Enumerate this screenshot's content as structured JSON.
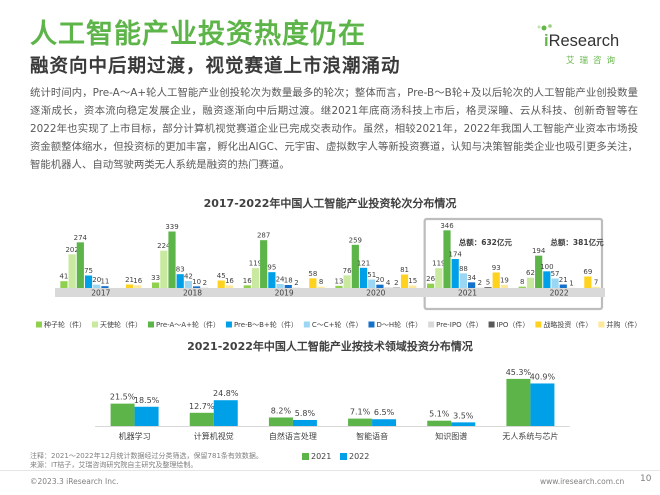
{
  "page": {
    "title": "人工智能产业投资热度仍在",
    "subtitle": "融资向中后期过渡，视觉赛道上市浪潮涌动",
    "paragraph": "统计时间内，Pre-A～A+轮人工智能产业创投轮次为数量最多的轮次；整体而言，Pre-B～B轮+及以后轮次的人工智能产业创投数量逐渐成长，资本流向稳定发展企业，融资逐渐向中后期过渡。继2021年底商汤科技上市后，格灵深瞳、云从科技、创新奇智等在2022年也实现了上市目标，部分计算机视觉赛道企业已完成交表动作。虽然，相较2021年，2022年我国人工智能产业资本市场投资金额整体缩水，但投资标的更加丰富，孵化出AIGC、元宇宙、虚拟数字人等新投资赛道，认知与决策智能类企业也吸引更多关注，智能机器人、自动驾驶两类无人系统是融资的热门赛道。",
    "footnote_1": "注释：2021～2022年12月统计数据经过分类筛选，保留781条有效数据。",
    "footnote_2": "来源：IT桔子，艾瑞咨询研究院自主研究及整理绘制。",
    "copyright": "©2023.3 iResearch Inc.",
    "site": "www.iresearch.com.cn",
    "page_number": "10",
    "logo_word_i": "i",
    "logo_word_rest": "Research",
    "logo_sub": "艾瑞咨询"
  },
  "colors": {
    "green_title": "#5db54a",
    "highlight_box": "#bdbdbd"
  },
  "chart_data": [
    {
      "type": "bar",
      "title": "2017-2022年中国人工智能产业投资轮次分布情况",
      "categories": [
        "2017",
        "2018",
        "2019",
        "2020",
        "2021",
        "2022"
      ],
      "series": [
        {
          "name": "种子轮（件）",
          "color": "#8fd14f",
          "values": [
            41,
            33,
            16,
            13,
            26,
            8
          ]
        },
        {
          "name": "天使轮（件）",
          "color": "#c9e9a1",
          "values": [
            202,
            224,
            119,
            76,
            119,
            62
          ]
        },
        {
          "name": "Pre-A～A+轮（件）",
          "color": "#5db54a",
          "values": [
            274,
            339,
            287,
            259,
            346,
            194
          ]
        },
        {
          "name": "Pre-B～B+轮（件）",
          "color": "#00a0e9",
          "values": [
            75,
            83,
            95,
            121,
            174,
            100
          ]
        },
        {
          "name": "C～C+轮（件）",
          "color": "#9bd7f3",
          "values": [
            20,
            42,
            24,
            51,
            88,
            57
          ]
        },
        {
          "name": "D～H轮（件）",
          "color": "#1570c9",
          "values": [
            11,
            10,
            18,
            20,
            34,
            21
          ]
        },
        {
          "name": "Pre-IPO（件）",
          "color": "#d9d9d9",
          "values": [
            null,
            2,
            2,
            4,
            2,
            1
          ]
        },
        {
          "name": "IPO（件）",
          "color": "#595959",
          "values": [
            null,
            null,
            null,
            2,
            5,
            null
          ]
        },
        {
          "name": "战略投资（件）",
          "color": "#ffd21f",
          "values": [
            21,
            45,
            58,
            81,
            93,
            69
          ]
        },
        {
          "name": "并购（件）",
          "color": "#ffe89a",
          "values": [
            16,
            16,
            8,
            15,
            19,
            7
          ]
        }
      ],
      "annotations": [
        {
          "label": "总额：632亿元",
          "category": "2021"
        },
        {
          "label": "总额：381亿元",
          "category": "2022"
        }
      ],
      "ylim": [
        0,
        360
      ],
      "legend": "bottom"
    },
    {
      "type": "bar",
      "title": "2021-2022年中国人工智能产业按技术领域投资分布情况",
      "categories": [
        "机器学习",
        "计算机视觉",
        "自然语言处理",
        "智能语音",
        "知识图谱",
        "无人系统与芯片"
      ],
      "series": [
        {
          "name": "2021",
          "color": "#5db54a",
          "values": [
            21.5,
            12.7,
            8.2,
            7.1,
            5.1,
            45.3
          ]
        },
        {
          "name": "2022",
          "color": "#00a0e9",
          "values": [
            18.5,
            24.8,
            5.8,
            6.5,
            3.5,
            40.9
          ]
        }
      ],
      "value_suffix": "%",
      "ylim": [
        0,
        50
      ],
      "legend": "bottom"
    }
  ]
}
